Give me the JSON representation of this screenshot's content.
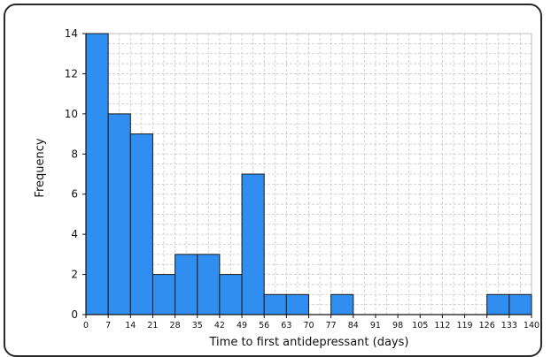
{
  "chart_data": {
    "type": "bar",
    "subtype": "histogram",
    "xlabel": "Time to first antidepressant (days)",
    "ylabel": "Frequency",
    "bin_width": 7,
    "xlim": [
      0,
      140
    ],
    "ylim": [
      0,
      14
    ],
    "x_ticks": [
      "0",
      "7",
      "14",
      "21",
      "28",
      "35",
      "42",
      "49",
      "56",
      "63",
      "70",
      "77",
      "84",
      "91",
      "98",
      "105",
      "112",
      "119",
      "126",
      "133",
      "140"
    ],
    "y_ticks": [
      "0",
      "2",
      "4",
      "6",
      "8",
      "10",
      "12",
      "14"
    ],
    "bins": [
      {
        "x0": 0,
        "x1": 7,
        "value": 14
      },
      {
        "x0": 7,
        "x1": 14,
        "value": 10
      },
      {
        "x0": 14,
        "x1": 21,
        "value": 9
      },
      {
        "x0": 21,
        "x1": 28,
        "value": 2
      },
      {
        "x0": 28,
        "x1": 35,
        "value": 3
      },
      {
        "x0": 35,
        "x1": 42,
        "value": 3
      },
      {
        "x0": 42,
        "x1": 49,
        "value": 2
      },
      {
        "x0": 49,
        "x1": 56,
        "value": 7
      },
      {
        "x0": 56,
        "x1": 63,
        "value": 1
      },
      {
        "x0": 63,
        "x1": 70,
        "value": 1
      },
      {
        "x0": 77,
        "x1": 84,
        "value": 1
      },
      {
        "x0": 126,
        "x1": 133,
        "value": 1
      },
      {
        "x0": 133,
        "x1": 140,
        "value": 1
      }
    ],
    "grid": true,
    "grid_style": "dashed",
    "colors": {
      "bar_fill": "#2f8ef0",
      "bar_stroke": "#1a1a1a",
      "grid": "#c8c8c8"
    }
  }
}
